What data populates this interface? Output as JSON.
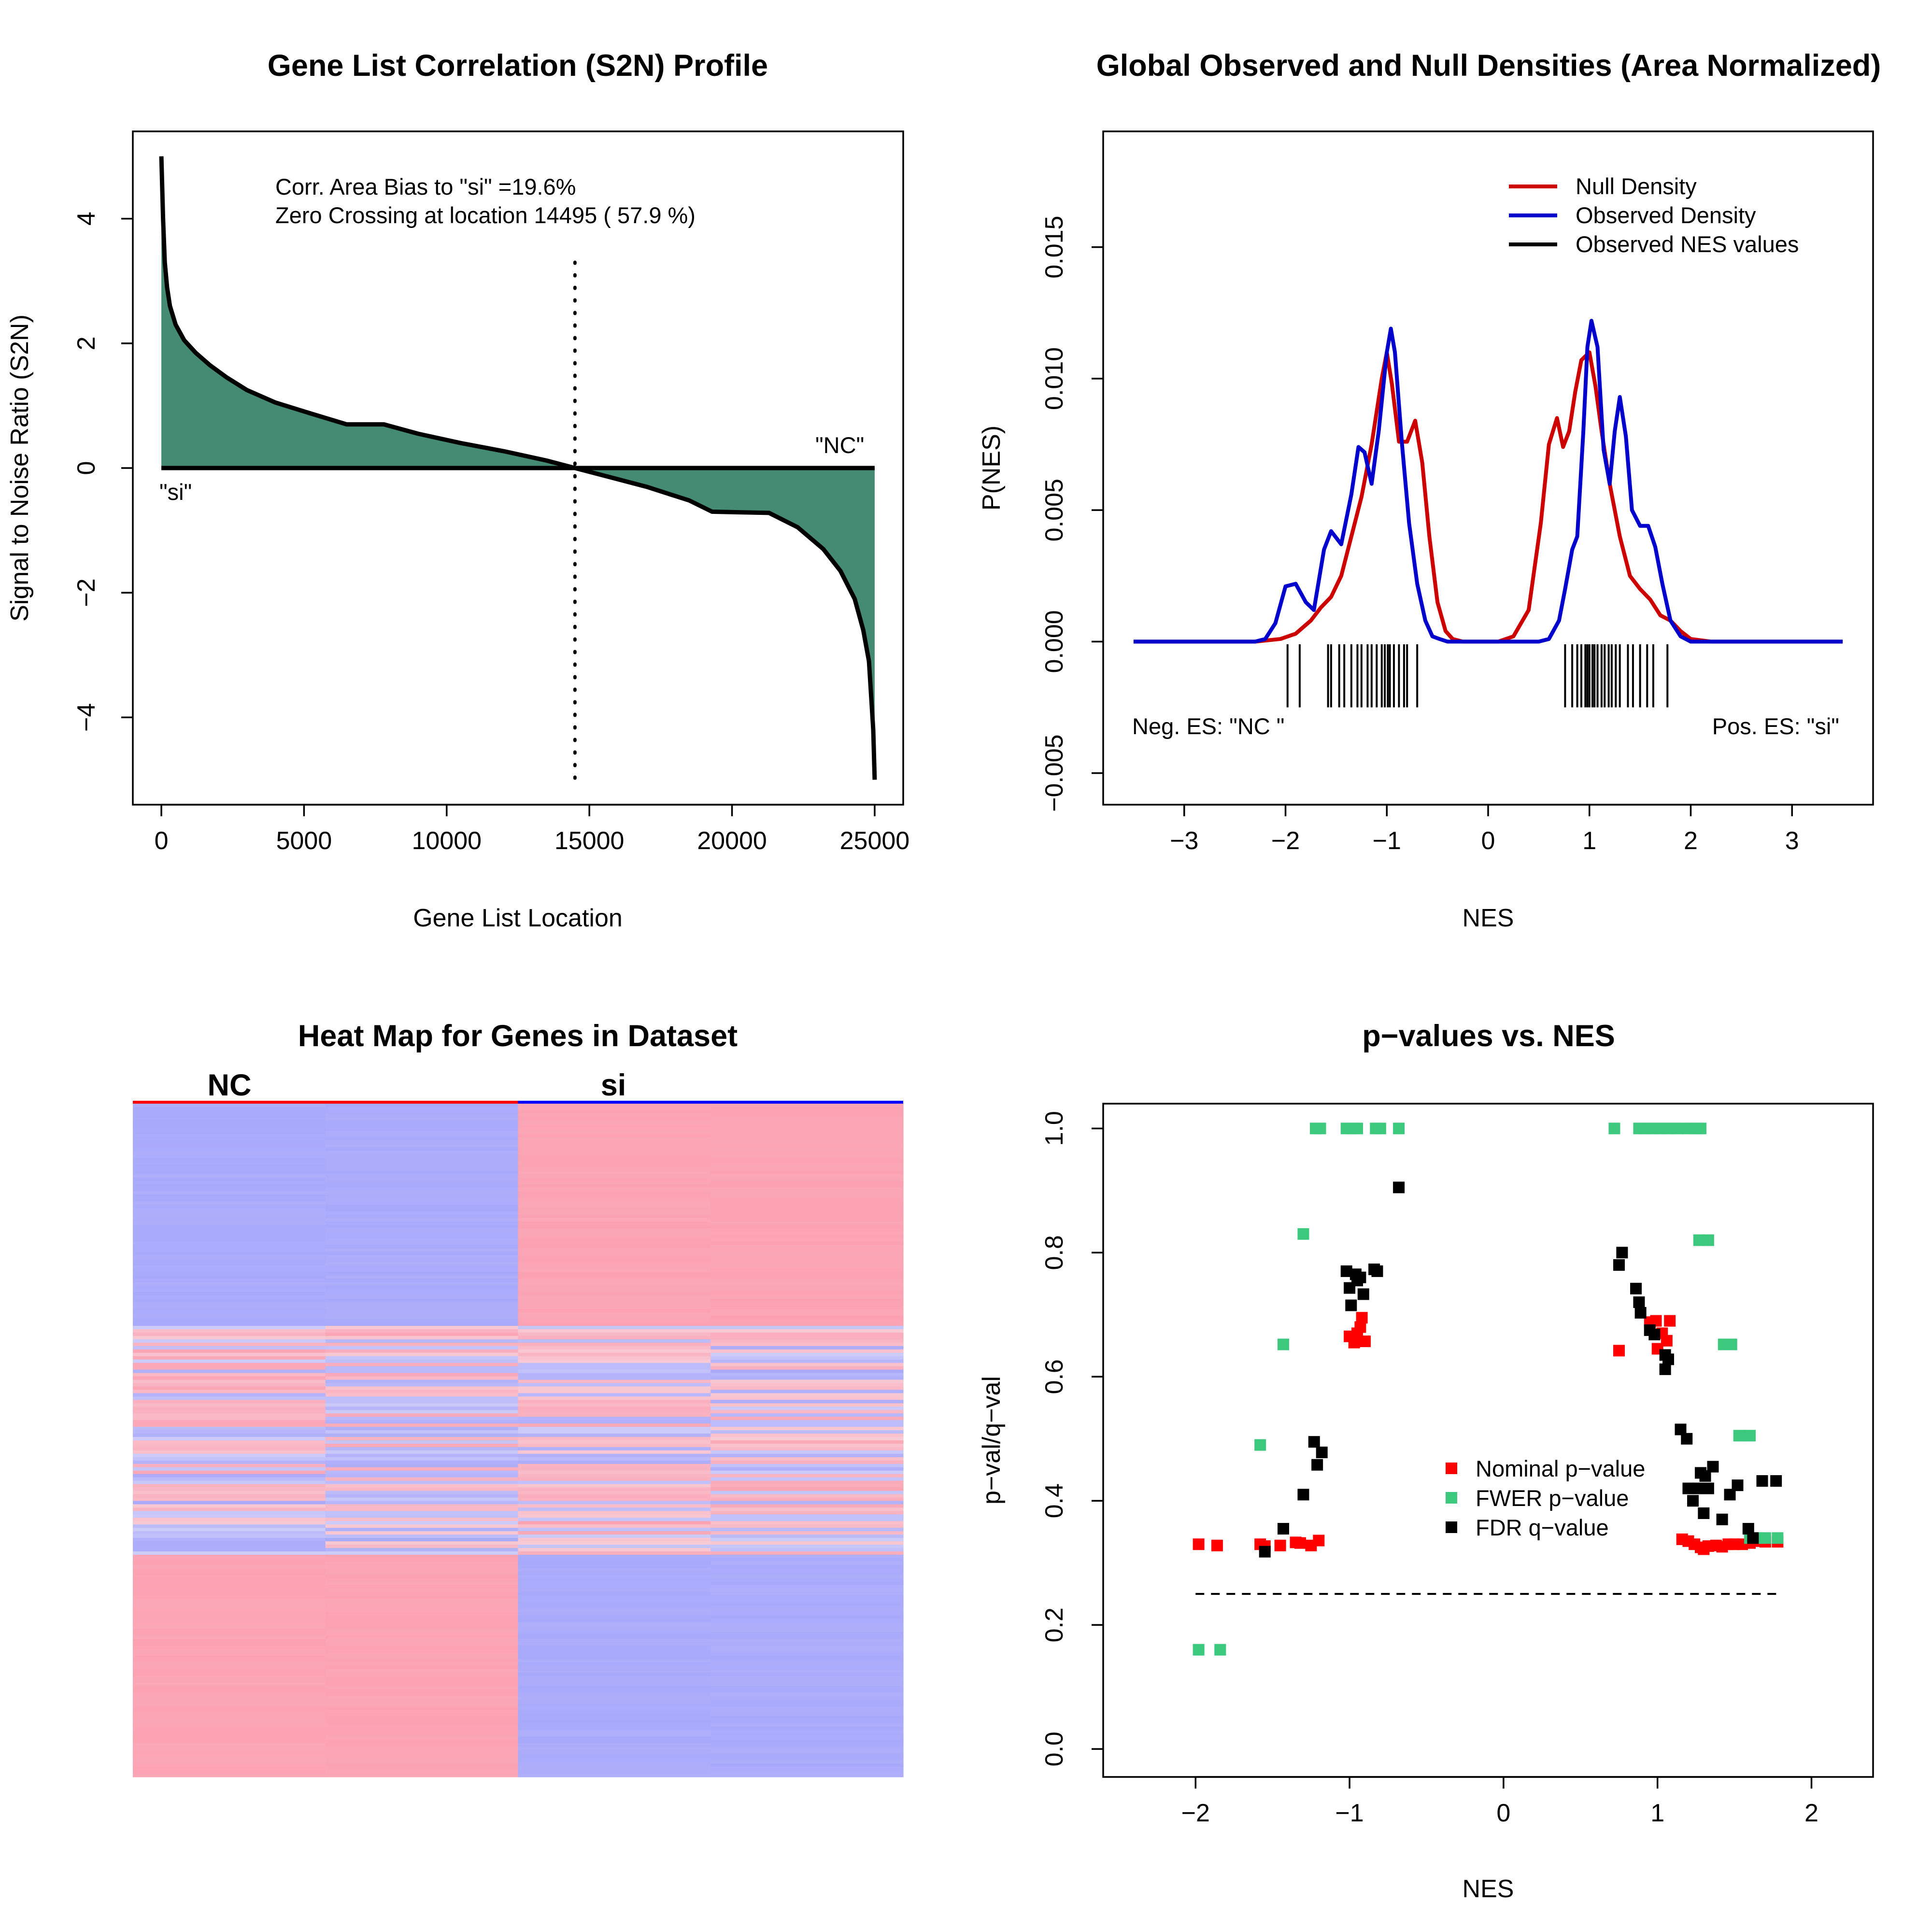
{
  "chart_data": [
    {
      "type": "area",
      "title": "Gene List Correlation (S2N) Profile",
      "xlabel": "Gene List Location",
      "ylabel": "Signal to Noise Ratio (S2N)",
      "xlim": [
        -1000,
        26000
      ],
      "ylim": [
        -5.4,
        5.4
      ],
      "x_ticks": [
        0,
        5000,
        10000,
        15000,
        20000,
        25000
      ],
      "y_ticks": [
        -4,
        -2,
        0,
        2,
        4
      ],
      "fill_color": "#458B74",
      "series": [
        {
          "x": [
            0,
            60,
            120,
            200,
            300,
            500,
            800,
            1200,
            1700,
            2300,
            3000,
            4000,
            5200,
            6500,
            7800,
            9000,
            10500,
            12000,
            13500,
            14495,
            15500,
            17000,
            18500,
            19300,
            21300,
            22300,
            23200,
            23800,
            24300,
            24600,
            24800,
            24950,
            25000
          ],
          "y": [
            5.0,
            4.0,
            3.3,
            2.9,
            2.6,
            2.3,
            2.05,
            1.85,
            1.65,
            1.45,
            1.25,
            1.05,
            0.88,
            0.7,
            0.7,
            0.55,
            0.4,
            0.27,
            0.12,
            0.0,
            -0.12,
            -0.3,
            -0.52,
            -0.7,
            -0.72,
            -0.95,
            -1.3,
            -1.65,
            -2.1,
            -2.6,
            -3.1,
            -4.2,
            -5.0
          ]
        }
      ],
      "zero_crossing": 14495,
      "annotations": [
        "Corr. Area Bias to \"si\" =19.6%",
        "Zero Crossing at location  14495  ( 57.9  %)",
        "\"si\"",
        "\"NC\""
      ]
    },
    {
      "type": "line",
      "title": "Global Observed and Null Densities (Area Normalized)",
      "xlabel": "NES",
      "ylabel": "P(NES)",
      "xlim": [
        -3.8,
        3.8
      ],
      "ylim": [
        -0.0062,
        0.0194
      ],
      "x_ticks": [
        -3,
        -2,
        -1,
        0,
        1,
        2,
        3
      ],
      "y_ticks": [
        -0.005,
        0.0,
        0.005,
        0.01,
        0.015
      ],
      "y_tick_labels": [
        "−0.005",
        "0.000",
        "0.005",
        "0.010",
        "0.015"
      ],
      "legend_position": "top-right",
      "series": [
        {
          "name": "Null Density",
          "color": "#CD0000",
          "x": [
            -3.5,
            -2.3,
            -2.05,
            -1.9,
            -1.75,
            -1.65,
            -1.55,
            -1.45,
            -1.35,
            -1.25,
            -1.15,
            -1.05,
            -1.0,
            -0.95,
            -0.88,
            -0.8,
            -0.72,
            -0.65,
            -0.58,
            -0.5,
            -0.42,
            -0.35,
            -0.25,
            -0.1,
            0.1,
            0.25,
            0.4,
            0.52,
            0.6,
            0.68,
            0.74,
            0.8,
            0.86,
            0.92,
            1.0,
            1.06,
            1.12,
            1.2,
            1.3,
            1.4,
            1.5,
            1.6,
            1.7,
            1.8,
            1.9,
            2.0,
            2.2,
            3.5
          ],
          "y": [
            0,
            0,
            0.0001,
            0.0003,
            0.0008,
            0.0013,
            0.0017,
            0.0025,
            0.004,
            0.0055,
            0.0075,
            0.01,
            0.011,
            0.0098,
            0.0076,
            0.0076,
            0.0084,
            0.0068,
            0.004,
            0.0015,
            0.0004,
            0.0001,
            0.0,
            0.0,
            0.0,
            0.0002,
            0.0012,
            0.0045,
            0.0075,
            0.0085,
            0.0074,
            0.008,
            0.0095,
            0.0107,
            0.011,
            0.0097,
            0.008,
            0.006,
            0.004,
            0.0025,
            0.002,
            0.0016,
            0.001,
            0.0008,
            0.0004,
            0.0001,
            0.0,
            0
          ]
        },
        {
          "name": "Observed Density",
          "color": "#0000CD",
          "x": [
            -3.5,
            -2.3,
            -2.2,
            -2.1,
            -2.0,
            -1.9,
            -1.8,
            -1.72,
            -1.62,
            -1.55,
            -1.45,
            -1.35,
            -1.28,
            -1.22,
            -1.15,
            -1.08,
            -1.0,
            -0.96,
            -0.92,
            -0.85,
            -0.78,
            -0.7,
            -0.62,
            -0.55,
            -0.48,
            -0.4,
            0.5,
            0.6,
            0.7,
            0.76,
            0.83,
            0.88,
            0.94,
            0.98,
            1.02,
            1.08,
            1.14,
            1.2,
            1.25,
            1.3,
            1.36,
            1.42,
            1.5,
            1.58,
            1.65,
            1.72,
            1.8,
            1.9,
            2.0,
            2.1,
            3.5
          ],
          "y": [
            0,
            0,
            0.0001,
            0.0007,
            0.0021,
            0.0022,
            0.0015,
            0.0012,
            0.0035,
            0.0042,
            0.0037,
            0.0056,
            0.0074,
            0.0072,
            0.006,
            0.008,
            0.011,
            0.0119,
            0.011,
            0.0075,
            0.0045,
            0.0022,
            0.0008,
            0.0002,
            0.0001,
            0.0,
            0.0,
            0.0001,
            0.0008,
            0.002,
            0.0035,
            0.004,
            0.008,
            0.0112,
            0.0122,
            0.0112,
            0.0073,
            0.006,
            0.008,
            0.0093,
            0.0078,
            0.005,
            0.0044,
            0.0044,
            0.0036,
            0.0022,
            0.0008,
            0.0002,
            0.0,
            0.0,
            0
          ]
        },
        {
          "name": "Observed NES values",
          "color": "#000000",
          "values": [
            -1.98,
            -1.86,
            -1.58,
            -1.55,
            -1.47,
            -1.42,
            -1.35,
            -1.29,
            -1.25,
            -1.19,
            -1.15,
            -1.1,
            -1.05,
            -1.02,
            -0.99,
            -0.97,
            -0.93,
            -0.88,
            -0.83,
            -0.8,
            -0.7,
            0.76,
            0.83,
            0.88,
            0.92,
            0.96,
            0.98,
            1.0,
            1.03,
            1.05,
            1.08,
            1.12,
            1.15,
            1.19,
            1.22,
            1.26,
            1.3,
            1.38,
            1.43,
            1.5,
            1.57,
            1.63,
            1.77
          ]
        }
      ],
      "annotations": [
        "Neg. ES: \"NC \"",
        "Pos. ES: \"si\""
      ]
    },
    {
      "type": "heatmap",
      "title": "Heat Map for Genes in Dataset",
      "column_groups": [
        {
          "label": "NC",
          "color": "#FF0000"
        },
        {
          "label": "si",
          "color": "#0000FF"
        }
      ],
      "columns": 4,
      "colors": {
        "low": "#A9A9FB",
        "high": "#FBA1B2"
      },
      "blocks": [
        {
          "rows_fraction": [
            0.0,
            0.33
          ],
          "values": [
            -1,
            -1,
            1,
            1
          ]
        },
        {
          "rows_fraction": [
            0.33,
            0.67
          ],
          "values": "mixed"
        },
        {
          "rows_fraction": [
            0.67,
            1.0
          ],
          "values": [
            1,
            1,
            -1,
            -1
          ]
        }
      ]
    },
    {
      "type": "scatter",
      "title": "p−values vs. NES",
      "xlabel": "NES",
      "ylabel": "p−val/q−val",
      "xlim": [
        -2.6,
        2.4
      ],
      "ylim": [
        -0.045,
        1.04
      ],
      "x_ticks": [
        -2,
        -1,
        0,
        1,
        2
      ],
      "y_ticks": [
        0.0,
        0.2,
        0.4,
        0.6,
        0.8,
        1.0
      ],
      "legend_position": "center-right",
      "threshold_line": {
        "y": 0.25,
        "x_range": [
          -2.0,
          1.8
        ],
        "style": "dashed"
      },
      "series": [
        {
          "name": "Nominal p−value",
          "color": "#FF0000",
          "points": [
            [
              -1.98,
              0.33
            ],
            [
              -1.86,
              0.328
            ],
            [
              -1.58,
              0.33
            ],
            [
              -1.55,
              0.327
            ],
            [
              -1.45,
              0.328
            ],
            [
              -1.35,
              0.333
            ],
            [
              -1.32,
              0.332
            ],
            [
              -1.25,
              0.328
            ],
            [
              -1.2,
              0.336
            ],
            [
              -1.0,
              0.665
            ],
            [
              -0.97,
              0.655
            ],
            [
              -0.95,
              0.67
            ],
            [
              -0.93,
              0.68
            ],
            [
              -0.92,
              0.695
            ],
            [
              -0.9,
              0.657
            ],
            [
              0.75,
              0.642
            ],
            [
              0.95,
              0.688
            ],
            [
              0.99,
              0.69
            ],
            [
              1.03,
              0.67
            ],
            [
              1.06,
              0.658
            ],
            [
              1.0,
              0.645
            ],
            [
              1.08,
              0.69
            ],
            [
              1.16,
              0.338
            ],
            [
              1.2,
              0.335
            ],
            [
              1.24,
              0.33
            ],
            [
              1.28,
              0.325
            ],
            [
              1.3,
              0.322
            ],
            [
              1.33,
              0.327
            ],
            [
              1.38,
              0.328
            ],
            [
              1.42,
              0.326
            ],
            [
              1.46,
              0.33
            ],
            [
              1.5,
              0.33
            ],
            [
              1.55,
              0.33
            ],
            [
              1.6,
              0.332
            ],
            [
              1.65,
              0.335
            ],
            [
              1.7,
              0.334
            ],
            [
              1.78,
              0.334
            ]
          ]
        },
        {
          "name": "FWER p−value",
          "color": "#3CC97E",
          "points": [
            [
              -1.98,
              0.16
            ],
            [
              -1.84,
              0.16
            ],
            [
              -1.58,
              0.49
            ],
            [
              -1.43,
              0.652
            ],
            [
              -1.3,
              0.83
            ],
            [
              -1.22,
              1.0
            ],
            [
              -1.19,
              1.0
            ],
            [
              -1.02,
              1.0
            ],
            [
              -0.98,
              1.0
            ],
            [
              -0.95,
              1.0
            ],
            [
              -0.83,
              1.0
            ],
            [
              -0.8,
              1.0
            ],
            [
              -0.68,
              1.0
            ],
            [
              0.72,
              1.0
            ],
            [
              0.88,
              1.0
            ],
            [
              0.92,
              1.0
            ],
            [
              0.97,
              1.0
            ],
            [
              1.02,
              1.0
            ],
            [
              1.07,
              1.0
            ],
            [
              1.13,
              1.0
            ],
            [
              1.2,
              1.0
            ],
            [
              1.25,
              1.0
            ],
            [
              1.28,
              1.0
            ],
            [
              1.27,
              0.82
            ],
            [
              1.33,
              0.82
            ],
            [
              1.43,
              0.652
            ],
            [
              1.48,
              0.652
            ],
            [
              1.53,
              0.505
            ],
            [
              1.6,
              0.505
            ],
            [
              1.6,
              0.34
            ],
            [
              1.65,
              0.34
            ],
            [
              1.7,
              0.34
            ],
            [
              1.78,
              0.34
            ]
          ]
        },
        {
          "name": "FDR q−value",
          "color": "#000000",
          "points": [
            [
              -1.55,
              0.318
            ],
            [
              -1.43,
              0.355
            ],
            [
              -1.3,
              0.41
            ],
            [
              -1.23,
              0.495
            ],
            [
              -1.21,
              0.458
            ],
            [
              -1.18,
              0.478
            ],
            [
              -1.02,
              0.77
            ],
            [
              -1.0,
              0.743
            ],
            [
              -0.99,
              0.715
            ],
            [
              -0.96,
              0.765
            ],
            [
              -0.95,
              0.755
            ],
            [
              -0.93,
              0.76
            ],
            [
              -0.91,
              0.733
            ],
            [
              -0.84,
              0.773
            ],
            [
              -0.82,
              0.77
            ],
            [
              -0.68,
              0.905
            ],
            [
              0.75,
              0.78
            ],
            [
              0.77,
              0.8
            ],
            [
              0.86,
              0.742
            ],
            [
              0.88,
              0.72
            ],
            [
              0.89,
              0.703
            ],
            [
              0.95,
              0.675
            ],
            [
              0.98,
              0.668
            ],
            [
              1.05,
              0.612
            ],
            [
              1.05,
              0.635
            ],
            [
              1.07,
              0.628
            ],
            [
              1.15,
              0.515
            ],
            [
              1.19,
              0.5
            ],
            [
              1.2,
              0.42
            ],
            [
              1.23,
              0.4
            ],
            [
              1.26,
              0.42
            ],
            [
              1.28,
              0.445
            ],
            [
              1.3,
              0.38
            ],
            [
              1.31,
              0.44
            ],
            [
              1.33,
              0.42
            ],
            [
              1.36,
              0.455
            ],
            [
              1.42,
              0.37
            ],
            [
              1.47,
              0.41
            ],
            [
              1.52,
              0.425
            ],
            [
              1.59,
              0.355
            ],
            [
              1.62,
              0.34
            ],
            [
              1.68,
              0.432
            ],
            [
              1.77,
              0.432
            ]
          ]
        }
      ]
    }
  ]
}
